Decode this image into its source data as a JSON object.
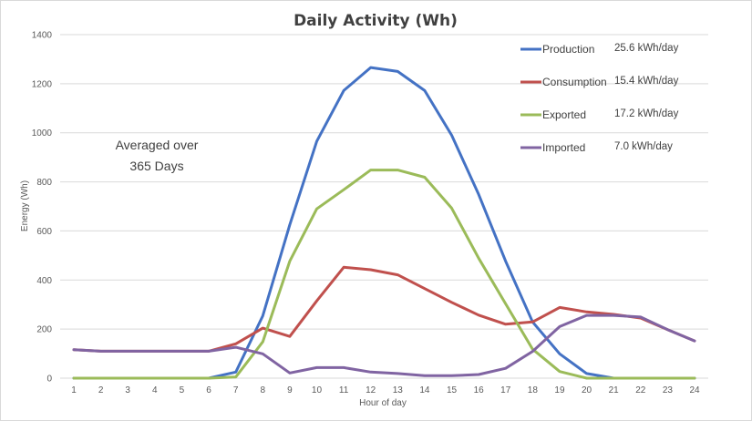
{
  "chart_data": {
    "type": "line",
    "title": "Daily Activity (Wh)",
    "xlabel": "Hour of day",
    "ylabel": "Energy (Wh)",
    "x": [
      1,
      2,
      3,
      4,
      5,
      6,
      7,
      8,
      9,
      10,
      11,
      12,
      13,
      14,
      15,
      16,
      17,
      18,
      19,
      20,
      21,
      22,
      23,
      24
    ],
    "yticks": [
      0,
      200,
      400,
      600,
      800,
      1000,
      1200,
      1400
    ],
    "ylim": [
      0,
      1400
    ],
    "grid": true,
    "legend_position": "top-right",
    "series": [
      {
        "name": "Production",
        "summary": "25.6 kWh/day",
        "color": "#4472c4",
        "values": [
          0,
          0,
          0,
          0,
          0,
          0,
          25,
          254,
          625,
          965,
          1172,
          1266,
          1250,
          1172,
          990,
          749,
          477,
          229,
          99,
          19,
          0,
          0,
          0,
          0
        ]
      },
      {
        "name": "Consumption",
        "summary": "15.4 kWh/day",
        "color": "#c0504d",
        "values": [
          116,
          110,
          110,
          110,
          110,
          110,
          140,
          204,
          170,
          315,
          452,
          442,
          421,
          365,
          309,
          257,
          220,
          229,
          288,
          270,
          260,
          245,
          198,
          152
        ]
      },
      {
        "name": "Exported",
        "summary": "17.2 kWh/day",
        "color": "#9bbb59",
        "values": [
          0,
          0,
          0,
          0,
          0,
          0,
          5,
          148,
          477,
          690,
          768,
          848,
          848,
          819,
          693,
          489,
          303,
          118,
          27,
          0,
          0,
          0,
          0,
          0
        ]
      },
      {
        "name": "Imported",
        "summary": "7.0 kWh/day",
        "color": "#8064a2",
        "values": [
          116,
          110,
          110,
          110,
          110,
          110,
          126,
          99,
          21,
          43,
          43,
          25,
          19,
          10,
          10,
          15,
          40,
          109,
          210,
          256,
          256,
          249,
          198,
          152
        ]
      }
    ],
    "annotations": [
      "Averaged over",
      "365 Days"
    ]
  }
}
